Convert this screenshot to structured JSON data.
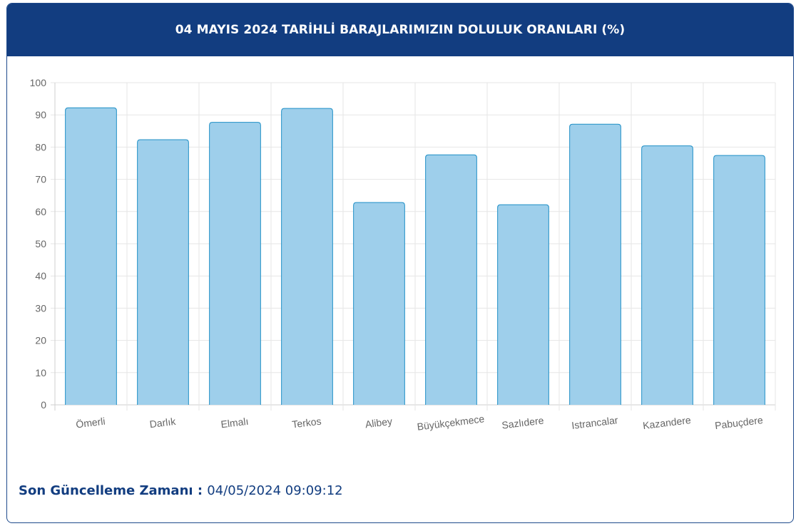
{
  "title": "04 MAYIS 2024 TARİHLİ BARAJLARIMIZIN DOLULUK ORANLARI (%)",
  "footer": {
    "label": "Son Güncelleme Zamanı",
    "separator": " : ",
    "value": "04/05/2024 09:09:12"
  },
  "colors": {
    "header_bg": "#123d80",
    "bar_fill": "#9ecfeb",
    "bar_stroke": "#1f8fc6"
  },
  "chart_data": {
    "type": "bar",
    "categories": [
      "Ömerli",
      "Darlık",
      "Elmalı",
      "Terkos",
      "Alibey",
      "Büyükçekmece",
      "Sazlıdere",
      "Istrancalar",
      "Kazandere",
      "Pabuçdere"
    ],
    "values": [
      92.2,
      82.3,
      87.7,
      92.0,
      62.8,
      77.6,
      62.1,
      87.1,
      80.4,
      77.4
    ],
    "ylim": [
      0,
      100
    ],
    "yticks": [
      "0",
      "10",
      "20",
      "30",
      "40",
      "50",
      "60",
      "70",
      "80",
      "90",
      "100"
    ],
    "grid": true,
    "legend": "none"
  }
}
